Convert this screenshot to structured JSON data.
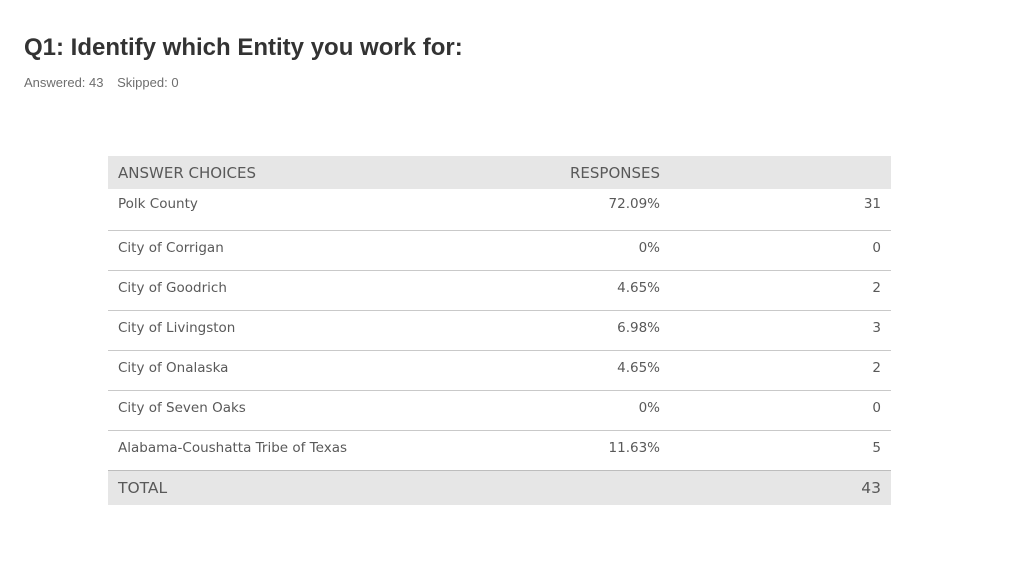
{
  "header": {
    "title": "Q1: Identify which Entity you work for:",
    "answered": "Answered: 43",
    "skipped": "Skipped: 0"
  },
  "table": {
    "columns": {
      "choices": "ANSWER CHOICES",
      "responses": "RESPONSES"
    },
    "rows": [
      {
        "choice": "Polk County",
        "percent": "72.09%",
        "count": "31"
      },
      {
        "choice": "City of Corrigan",
        "percent": "0%",
        "count": "0"
      },
      {
        "choice": "City of Goodrich",
        "percent": "4.65%",
        "count": "2"
      },
      {
        "choice": "City of Livingston",
        "percent": "6.98%",
        "count": "3"
      },
      {
        "choice": "City of Onalaska",
        "percent": "4.65%",
        "count": "2"
      },
      {
        "choice": "City of Seven Oaks",
        "percent": "0%",
        "count": "0"
      },
      {
        "choice": "Alabama-Coushatta Tribe of Texas",
        "percent": "11.63%",
        "count": "5"
      }
    ],
    "total": {
      "label": "TOTAL",
      "count": "43"
    }
  }
}
